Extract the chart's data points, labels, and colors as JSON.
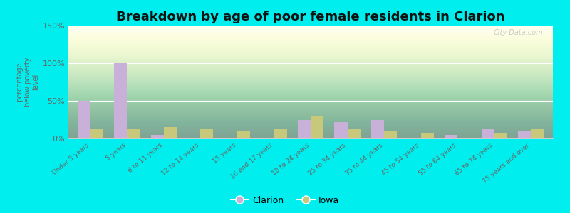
{
  "title": "Breakdown by age of poor female residents in Clarion",
  "ylabel": "percentage\nbelow poverty\nlevel",
  "categories": [
    "Under 5 years",
    "5 years",
    "6 to 11 years",
    "12 to 14 years",
    "15 years",
    "16 and 17 years",
    "18 to 24 years",
    "25 to 34 years",
    "35 to 44 years",
    "45 to 54 years",
    "55 to 64 years",
    "65 to 74 years",
    "75 years and over"
  ],
  "clarion_values": [
    50,
    100,
    5,
    0,
    0,
    0,
    25,
    22,
    25,
    0,
    5,
    13,
    10
  ],
  "iowa_values": [
    13,
    13,
    15,
    12,
    9,
    13,
    30,
    13,
    9,
    7,
    0,
    8,
    13
  ],
  "clarion_color": "#c9b0d9",
  "iowa_color": "#c8c87a",
  "ylim": [
    0,
    150
  ],
  "yticks": [
    0,
    50,
    100,
    150
  ],
  "ytick_labels": [
    "0%",
    "50%",
    "100%",
    "150%"
  ],
  "outer_background": "#00eeee",
  "title_fontsize": 13,
  "bar_width": 0.35,
  "watermark": "City-Data.com"
}
